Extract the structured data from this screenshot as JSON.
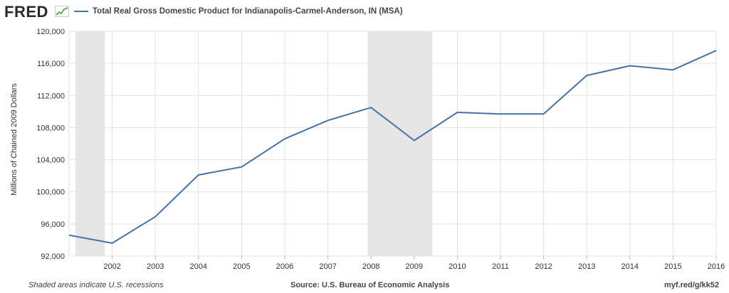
{
  "header": {
    "logo_text": "FRED"
  },
  "footer": {
    "note": "Shaded areas indicate U.S. recessions",
    "source": "Source: U.S. Bureau of Economic Analysis",
    "link": "myf.red/g/kk52"
  },
  "colors": {
    "series": "#4572a7",
    "recession": "#e6e6e6",
    "grid": "#e3e3e3",
    "logo_accent": "#4a9a4a"
  },
  "chart_data": {
    "type": "line",
    "title": "",
    "xlabel": "",
    "ylabel": "Millions of Chained 2009 Dollars",
    "x_tick_labels": [
      "2002",
      "2003",
      "2004",
      "2005",
      "2006",
      "2007",
      "2008",
      "2009",
      "2010",
      "2011",
      "2012",
      "2013",
      "2014",
      "2015",
      "2016"
    ],
    "y_tick_labels": [
      "92,000",
      "96,000",
      "100,000",
      "104,000",
      "108,000",
      "112,000",
      "116,000",
      "120,000"
    ],
    "ylim": [
      92000,
      120000
    ],
    "xlim": [
      2001,
      2016
    ],
    "grid": true,
    "legend_position": "top-left",
    "recessions": [
      [
        2001.15,
        2001.83
      ],
      [
        2007.92,
        2009.42
      ]
    ],
    "series": [
      {
        "name": "Total Real Gross Domestic Product for Indianapolis-Carmel-Anderson, IN (MSA)",
        "x": [
          2001,
          2002,
          2003,
          2004,
          2005,
          2006,
          2007,
          2008,
          2009,
          2010,
          2011,
          2012,
          2013,
          2014,
          2015,
          2016
        ],
        "values": [
          94600,
          93600,
          96900,
          102100,
          103100,
          106600,
          108900,
          110500,
          106400,
          109900,
          109700,
          109700,
          114500,
          115700,
          115200,
          117600
        ]
      }
    ]
  }
}
